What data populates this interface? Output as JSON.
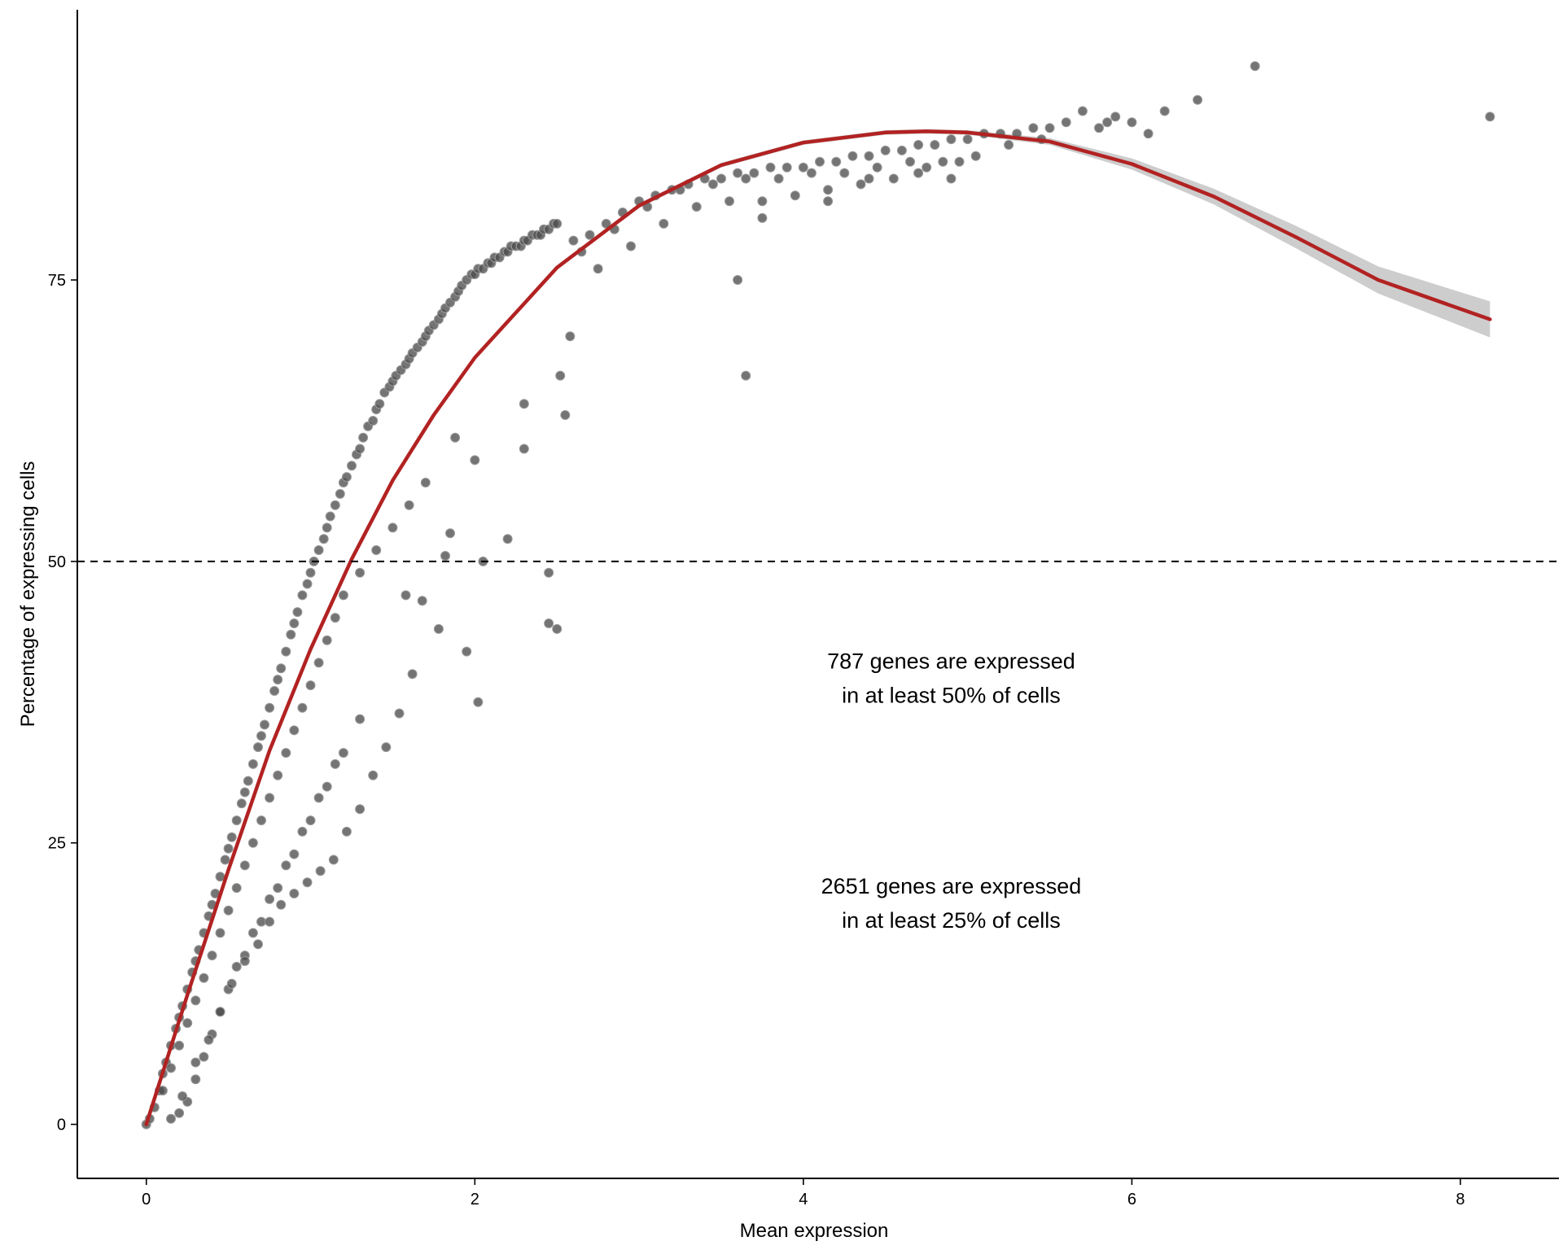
{
  "chart_data": {
    "type": "scatter",
    "title": "",
    "xlabel": "Mean expression",
    "ylabel": "Percentage of expressing cells",
    "xlim": [
      -0.42,
      8.6
    ],
    "ylim": [
      -4.8,
      99
    ],
    "x_ticks": [
      0,
      2,
      4,
      6,
      8
    ],
    "x_tick_labels": [
      "0",
      "2",
      "4",
      "6",
      "8"
    ],
    "y_ticks": [
      0,
      25,
      50,
      75
    ],
    "y_tick_labels": [
      "0",
      "25",
      "50",
      "75"
    ],
    "grid": false,
    "legend": "none",
    "colors": {
      "points": "#4d4d4d",
      "point_edge": "#9a9a9a",
      "fit_line": "#b22222",
      "confidence_band": "#c8c8c8",
      "reference_line": "#000000"
    },
    "reference_line": {
      "y": 50,
      "style": "dashed"
    },
    "fit_curve": {
      "x": [
        0,
        0.25,
        0.5,
        0.75,
        1,
        1.25,
        1.5,
        1.75,
        2,
        2.5,
        3,
        3.5,
        4,
        4.5,
        4.75,
        5,
        5.5,
        6,
        6.5,
        7,
        7.5,
        8.18
      ],
      "y": [
        0,
        11.5,
        22.6,
        33.2,
        42.2,
        50.2,
        57.2,
        63.0,
        68.1,
        76.1,
        81.6,
        85.2,
        87.2,
        88.1,
        88.2,
        88.1,
        87.3,
        85.3,
        82.4,
        78.8,
        75.0,
        71.5
      ],
      "band_lower": [
        0,
        11.2,
        22.3,
        33.0,
        42.0,
        50.0,
        57.0,
        62.8,
        67.9,
        75.9,
        81.4,
        85.0,
        87.0,
        87.9,
        88.0,
        87.9,
        87.0,
        84.8,
        81.7,
        77.8,
        73.8,
        69.9
      ],
      "band_upper": [
        0,
        11.8,
        22.9,
        33.4,
        42.4,
        50.4,
        57.4,
        63.2,
        68.3,
        76.3,
        81.8,
        85.4,
        87.4,
        88.3,
        88.4,
        88.3,
        87.6,
        85.8,
        83.1,
        79.8,
        76.2,
        73.1
      ]
    },
    "points": {
      "x": [
        0,
        0.02,
        0.05,
        0.08,
        0.1,
        0.12,
        0.15,
        0.18,
        0.2,
        0.22,
        0.25,
        0.28,
        0.3,
        0.32,
        0.35,
        0.38,
        0.4,
        0.42,
        0.45,
        0.48,
        0.5,
        0.52,
        0.55,
        0.58,
        0.6,
        0.62,
        0.65,
        0.68,
        0.7,
        0.72,
        0.75,
        0.78,
        0.8,
        0.82,
        0.85,
        0.88,
        0.9,
        0.92,
        0.95,
        0.98,
        1,
        1.02,
        1.05,
        1.08,
        1.1,
        1.12,
        1.15,
        1.18,
        1.2,
        1.22,
        1.25,
        1.28,
        1.3,
        1.32,
        1.35,
        1.38,
        1.4,
        1.42,
        1.45,
        1.48,
        1.5,
        1.52,
        1.55,
        1.58,
        1.6,
        1.62,
        1.65,
        1.68,
        1.7,
        1.72,
        1.75,
        1.78,
        1.8,
        1.82,
        1.85,
        1.88,
        1.9,
        1.92,
        1.95,
        1.98,
        2,
        2.02,
        2.05,
        2.08,
        2.1,
        2.12,
        2.15,
        2.18,
        2.2,
        2.22,
        2.25,
        2.28,
        2.3,
        2.32,
        2.35,
        2.38,
        2.4,
        2.42,
        2.45,
        2.48,
        2.5,
        0.1,
        0.15,
        0.2,
        0.25,
        0.3,
        0.35,
        0.4,
        0.45,
        0.5,
        0.55,
        0.6,
        0.65,
        0.7,
        0.75,
        0.8,
        0.85,
        0.9,
        0.95,
        1,
        1.05,
        1.1,
        1.15,
        1.2,
        1.3,
        1.4,
        1.5,
        1.6,
        1.7,
        0.2,
        0.3,
        0.4,
        0.5,
        0.6,
        0.7,
        0.8,
        0.9,
        1.0,
        1.1,
        1.2,
        1.3,
        0.25,
        0.35,
        0.45,
        0.55,
        0.65,
        0.75,
        0.85,
        0.95,
        1.05,
        1.15,
        0.15,
        0.22,
        0.3,
        0.38,
        0.45,
        0.52,
        0.6,
        0.68,
        0.75,
        0.82,
        0.9,
        0.98,
        1.06,
        1.14,
        1.22,
        1.3,
        1.38,
        1.46,
        1.54,
        1.62,
        1.78,
        1.82,
        2.0,
        2.05,
        2.2,
        2.3,
        2.45,
        2.5,
        1.88,
        2.02,
        2.45,
        2.52,
        2.55,
        1.58,
        1.68,
        1.85,
        1.95,
        2.6,
        2.7,
        2.8,
        2.9,
        3.0,
        3.1,
        3.2,
        3.3,
        3.4,
        3.5,
        3.6,
        3.7,
        3.8,
        3.9,
        4.0,
        4.1,
        4.2,
        4.3,
        4.4,
        4.5,
        4.6,
        4.7,
        4.8,
        4.9,
        5.0,
        5.1,
        5.2,
        5.3,
        5.4,
        5.5,
        5.6,
        2.65,
        2.85,
        3.05,
        3.25,
        3.45,
        3.65,
        3.85,
        4.05,
        4.25,
        4.45,
        4.65,
        4.85,
        5.05,
        5.25,
        5.45,
        2.75,
        2.95,
        3.15,
        3.35,
        3.55,
        3.75,
        3.95,
        4.15,
        4.35,
        4.55,
        4.75,
        4.95,
        3.6,
        3.65,
        2.3,
        2.58,
        3.75,
        4.15,
        4.4,
        4.7,
        4.9,
        5.8,
        5.9,
        6.0,
        6.1,
        6.2,
        6.4,
        6.75,
        8.18,
        5.7,
        5.85
      ],
      "y": [
        0,
        0.5,
        1.5,
        3,
        4.5,
        5.5,
        7,
        8.5,
        9.5,
        10.5,
        12,
        13.5,
        14.5,
        15.5,
        17,
        18.5,
        19.5,
        20.5,
        22,
        23.5,
        24.5,
        25.5,
        27,
        28.5,
        29.5,
        30.5,
        32,
        33.5,
        34.5,
        35.5,
        37,
        38.5,
        39.5,
        40.5,
        42,
        43.5,
        44.5,
        45.5,
        47,
        48,
        49,
        50,
        51,
        52,
        53,
        54,
        55,
        56,
        57,
        57.5,
        58.5,
        59.5,
        60,
        61,
        62,
        62.5,
        63.5,
        64,
        65,
        65.5,
        66,
        66.5,
        67,
        67.5,
        68,
        68.5,
        69,
        69.5,
        70,
        70.5,
        71,
        71.5,
        72,
        72.5,
        73,
        73.5,
        74,
        74.5,
        75,
        75.5,
        75.5,
        76,
        76,
        76.5,
        76.5,
        77,
        77,
        77.5,
        77.5,
        78,
        78,
        78,
        78.5,
        78.5,
        79,
        79,
        79,
        79.5,
        79.5,
        80,
        80,
        3,
        5,
        7,
        9,
        11,
        13,
        15,
        17,
        19,
        21,
        23,
        25,
        27,
        29,
        31,
        33,
        35,
        37,
        39,
        41,
        43,
        45,
        47,
        49,
        51,
        53,
        55,
        57,
        1,
        4,
        8,
        12,
        15,
        18,
        21,
        24,
        27,
        30,
        33,
        36,
        2,
        6,
        10,
        14,
        17,
        20,
        23,
        26,
        29,
        32,
        0.5,
        2.5,
        5.5,
        7.5,
        10,
        12.5,
        14.5,
        16,
        18,
        19.5,
        20.5,
        21.5,
        22.5,
        23.5,
        26,
        28,
        31,
        33.5,
        36.5,
        40,
        44,
        50.5,
        59,
        50,
        52,
        60,
        44.5,
        44,
        61,
        37.5,
        49,
        66.5,
        63,
        47,
        46.5,
        52.5,
        42,
        78.5,
        79,
        80,
        81,
        82,
        82.5,
        83,
        83.5,
        84,
        84,
        84.5,
        84.5,
        85,
        85,
        85,
        85.5,
        85.5,
        86,
        86,
        86.5,
        86.5,
        87,
        87,
        87.5,
        87.5,
        88,
        88,
        88,
        88.5,
        88.5,
        89,
        77.5,
        79.5,
        81.5,
        83,
        83.5,
        84,
        84,
        84.5,
        84.5,
        85,
        85.5,
        85.5,
        86,
        87,
        87.5,
        76,
        78,
        80,
        81.5,
        82,
        82,
        82.5,
        83,
        83.5,
        84,
        85,
        85.5,
        75,
        66.5,
        64,
        70,
        80.5,
        82,
        84,
        84.5,
        84,
        88.5,
        89.5,
        89,
        88,
        90,
        91,
        94,
        89.5,
        90,
        89
      ]
    },
    "annotations": [
      {
        "line1": "787 genes are expressed",
        "line2": "in at least 50% of cells",
        "x": 4.9,
        "y": 40.5
      },
      {
        "line1": "2651 genes are expressed",
        "line2": "in at least 25% of cells",
        "x": 4.9,
        "y": 20.5
      }
    ]
  }
}
